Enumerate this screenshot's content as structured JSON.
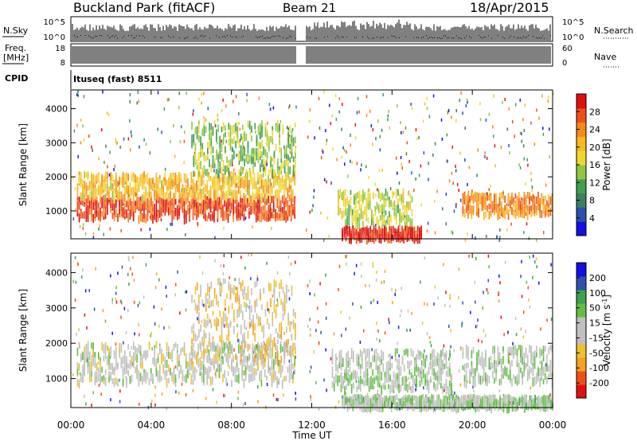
{
  "header": {
    "site": "Buckland Park (fitACF)",
    "beam": "Beam 21",
    "date": "18/Apr/2015"
  },
  "summary_panels": {
    "nsky_label": "N.Sky",
    "nsky_ticks": [
      "10^5",
      "10^0"
    ],
    "nsearch_label": "N.Search",
    "nsearch_ticks": [
      "10^5",
      "10^0"
    ],
    "freq_label": "Freq.",
    "freq_unit": "[MHz]",
    "freq_ticks": [
      "18",
      "8"
    ],
    "nave_label": "Nave",
    "nave_ticks": [
      "60",
      "0"
    ],
    "cpid_label": "CPID",
    "cpid_value": "Ituseq (fast) 8511"
  },
  "chart_data": [
    {
      "type": "heatmap",
      "title": "",
      "xlabel": "Time UT",
      "ylabel": "Slant Range [km]",
      "x_tick_labels": [
        "00:00",
        "04:00",
        "08:00",
        "12:00",
        "16:00",
        "20:00",
        "00:00"
      ],
      "x_range_hours": [
        0,
        24
      ],
      "y_tick_labels": [
        "1000",
        "2000",
        "3000",
        "4000"
      ],
      "ylim": [
        180,
        4550
      ],
      "data_gap_hours": [
        11.25,
        11.7
      ],
      "colorbar": {
        "label": "Power [dB]",
        "tick_labels": [
          "28",
          "24",
          "20",
          "16",
          "12",
          "8",
          "4"
        ],
        "range": [
          0,
          32
        ],
        "colors": [
          "#1010e0",
          "#2a50b0",
          "#3a8060",
          "#40a050",
          "#90c840",
          "#f0d830",
          "#f8b820",
          "#f88818",
          "#f05018",
          "#e01010"
        ]
      },
      "regions": [
        {
          "x": [
            0.3,
            11.2
          ],
          "y": [
            800,
            1400
          ],
          "value": 28
        },
        {
          "x": [
            0.3,
            11.2
          ],
          "y": [
            1400,
            2100
          ],
          "value": 20
        },
        {
          "x": [
            6.0,
            11.2
          ],
          "y": [
            2100,
            3600
          ],
          "value": 14
        },
        {
          "x": [
            13.3,
            17.0
          ],
          "y": [
            600,
            1600
          ],
          "value": 16
        },
        {
          "x": [
            13.5,
            17.5
          ],
          "y": [
            200,
            500
          ],
          "value": 30
        },
        {
          "x": [
            19.5,
            24.0
          ],
          "y": [
            900,
            1500
          ],
          "value": 24
        }
      ]
    },
    {
      "type": "heatmap",
      "title": "",
      "xlabel": "Time UT",
      "ylabel": "Slant Range [km]",
      "x_tick_labels": [
        "00:00",
        "04:00",
        "08:00",
        "12:00",
        "16:00",
        "20:00",
        "00:00"
      ],
      "x_range_hours": [
        0,
        24
      ],
      "y_tick_labels": [
        "1000",
        "2000",
        "3000",
        "4000"
      ],
      "ylim": [
        180,
        4550
      ],
      "data_gap_hours": [
        11.25,
        11.7
      ],
      "colorbar": {
        "label": "Velocity [m s^-1]",
        "tick_labels": [
          "200",
          "100",
          "50",
          "15",
          "-15",
          "-50",
          "-100",
          "-200"
        ],
        "range": [
          -250,
          250
        ],
        "colors": [
          "#e01010",
          "#f05018",
          "#f8a020",
          "#f0c030",
          "#c0c0c0",
          "#c0c0c0",
          "#60c040",
          "#40a050",
          "#3050b0",
          "#1010e0"
        ]
      },
      "regions": [
        {
          "x": [
            0.3,
            11.2
          ],
          "y": [
            900,
            2000
          ],
          "value": 0
        },
        {
          "x": [
            6.0,
            11.2
          ],
          "y": [
            1500,
            3800
          ],
          "value": -60
        },
        {
          "x": [
            13.0,
            19.0
          ],
          "y": [
            700,
            1800
          ],
          "value": 30
        },
        {
          "x": [
            13.5,
            24.0
          ],
          "y": [
            200,
            500
          ],
          "value": 40
        },
        {
          "x": [
            19.5,
            24.0
          ],
          "y": [
            900,
            1900
          ],
          "value": 20
        }
      ]
    }
  ]
}
